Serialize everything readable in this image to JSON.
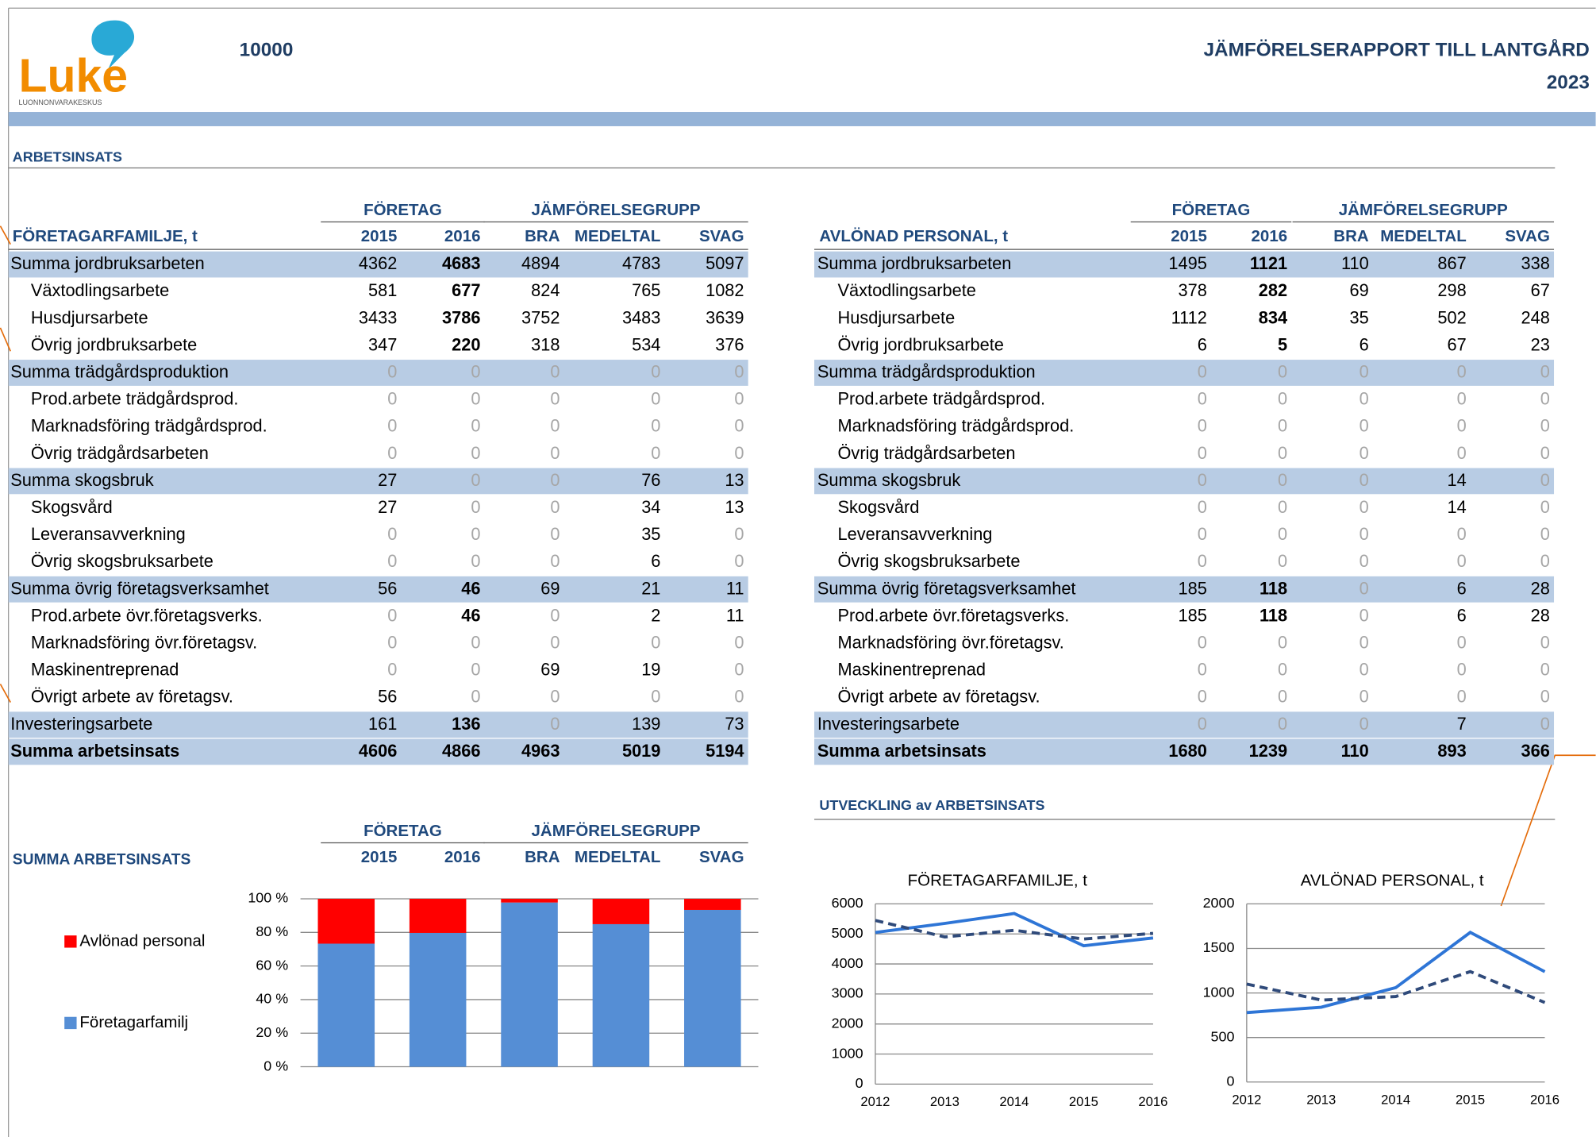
{
  "header": {
    "logo": "Luke",
    "logo_subtitle": "LUONNONVARAKESKUS",
    "farm_id": "10000",
    "title": "JÄMFÖRELSERAPPORT TILL LANTGÅRD",
    "year": "2023"
  },
  "section": "ARBETSINSATS",
  "column_groups": [
    "FÖRETAG",
    "JÄMFÖRELSEGRUPP"
  ],
  "columns": [
    "2015",
    "2016",
    "BRA",
    "MEDELTAL",
    "SVAG"
  ],
  "tables": [
    {
      "title": "FÖRETAGARFAMILJE, t",
      "groups": [
        {
          "label": "Summa jordbruksarbeten",
          "values": [
            4362,
            4683,
            4894,
            4783,
            5097
          ],
          "items": [
            {
              "label": "Växtodlingsarbete",
              "values": [
                581,
                677,
                824,
                765,
                1082
              ]
            },
            {
              "label": "Husdjursarbete",
              "values": [
                3433,
                3786,
                3752,
                3483,
                3639
              ]
            },
            {
              "label": "Övrig jordbruksarbete",
              "values": [
                347,
                220,
                318,
                534,
                376
              ]
            }
          ]
        },
        {
          "label": "Summa trädgårdsproduktion",
          "values": [
            0,
            0,
            0,
            0,
            0
          ],
          "items": [
            {
              "label": "Prod.arbete trädgårdsprod.",
              "values": [
                0,
                0,
                0,
                0,
                0
              ]
            },
            {
              "label": "Marknadsföring trädgårdsprod.",
              "values": [
                0,
                0,
                0,
                0,
                0
              ]
            },
            {
              "label": "Övrig trädgårdsarbeten",
              "values": [
                0,
                0,
                0,
                0,
                0
              ]
            }
          ]
        },
        {
          "label": "Summa skogsbruk",
          "values": [
            27,
            0,
            0,
            76,
            13
          ],
          "items": [
            {
              "label": "Skogsvård",
              "values": [
                27,
                0,
                0,
                34,
                13
              ]
            },
            {
              "label": "Leveransavverkning",
              "values": [
                0,
                0,
                0,
                35,
                0
              ]
            },
            {
              "label": "Övrig skogsbruksarbete",
              "values": [
                0,
                0,
                0,
                6,
                0
              ]
            }
          ]
        },
        {
          "label": "Summa övrig företagsverksamhet",
          "values": [
            56,
            46,
            69,
            21,
            11
          ],
          "items": [
            {
              "label": "Prod.arbete övr.företagsverks.",
              "values": [
                0,
                46,
                0,
                2,
                11
              ]
            },
            {
              "label": "Marknadsföring övr.företagsv.",
              "values": [
                0,
                0,
                0,
                0,
                0
              ]
            },
            {
              "label": "Maskinentreprenad",
              "values": [
                0,
                0,
                69,
                19,
                0
              ]
            },
            {
              "label": "Övrigt arbete av företagsv.",
              "values": [
                56,
                0,
                0,
                0,
                0
              ]
            }
          ]
        },
        {
          "label": "Investeringsarbete",
          "values": [
            161,
            136,
            0,
            139,
            73
          ],
          "items": []
        }
      ],
      "total": {
        "label": "Summa arbetsinsats",
        "values": [
          4606,
          4866,
          4963,
          5019,
          5194
        ]
      }
    },
    {
      "title": "AVLÖNAD PERSONAL, t",
      "groups": [
        {
          "label": "Summa jordbruksarbeten",
          "values": [
            1495,
            1121,
            110,
            867,
            338
          ],
          "items": [
            {
              "label": "Växtodlingsarbete",
              "values": [
                378,
                282,
                69,
                298,
                67
              ]
            },
            {
              "label": "Husdjursarbete",
              "values": [
                1112,
                834,
                35,
                502,
                248
              ]
            },
            {
              "label": "Övrig jordbruksarbete",
              "values": [
                6,
                5,
                6,
                67,
                23
              ]
            }
          ]
        },
        {
          "label": "Summa trädgårdsproduktion",
          "values": [
            0,
            0,
            0,
            0,
            0
          ],
          "items": [
            {
              "label": "Prod.arbete trädgårdsprod.",
              "values": [
                0,
                0,
                0,
                0,
                0
              ]
            },
            {
              "label": "Marknadsföring trädgårdsprod.",
              "values": [
                0,
                0,
                0,
                0,
                0
              ]
            },
            {
              "label": "Övrig trädgårdsarbeten",
              "values": [
                0,
                0,
                0,
                0,
                0
              ]
            }
          ]
        },
        {
          "label": "Summa skogsbruk",
          "values": [
            0,
            0,
            0,
            14,
            0
          ],
          "items": [
            {
              "label": "Skogsvård",
              "values": [
                0,
                0,
                0,
                14,
                0
              ]
            },
            {
              "label": "Leveransavverkning",
              "values": [
                0,
                0,
                0,
                0,
                0
              ]
            },
            {
              "label": "Övrig skogsbruksarbete",
              "values": [
                0,
                0,
                0,
                0,
                0
              ]
            }
          ]
        },
        {
          "label": "Summa övrig företagsverksamhet",
          "values": [
            185,
            118,
            0,
            6,
            28
          ],
          "items": [
            {
              "label": "Prod.arbete övr.företagsverks.",
              "values": [
                185,
                118,
                0,
                6,
                28
              ]
            },
            {
              "label": "Marknadsföring övr.företagsv.",
              "values": [
                0,
                0,
                0,
                0,
                0
              ]
            },
            {
              "label": "Maskinentreprenad",
              "values": [
                0,
                0,
                0,
                0,
                0
              ]
            },
            {
              "label": "Övrigt arbete av företagsv.",
              "values": [
                0,
                0,
                0,
                0,
                0
              ]
            }
          ]
        },
        {
          "label": "Investeringsarbete",
          "values": [
            0,
            0,
            0,
            7,
            0
          ],
          "items": []
        }
      ],
      "total": {
        "label": "Summa arbetsinsats",
        "values": [
          1680,
          1239,
          110,
          893,
          366
        ]
      }
    }
  ],
  "development_title": "UTVECKLING av ARBETSINSATS",
  "chart_data": [
    {
      "type": "bar",
      "stacked": true,
      "title": "SUMMA ARBETSINSATS",
      "categories": [
        null,
        null,
        null,
        null,
        null
      ],
      "series": [
        {
          "name": "Avlönad personal",
          "color": "#ff0000",
          "values": [
            26.7,
            20.3,
            2.2,
            15.1,
            6.6
          ]
        },
        {
          "name": "Företagarfamilj",
          "color": "#558ed5",
          "values": [
            73.3,
            79.7,
            97.8,
            84.9,
            93.4
          ]
        }
      ],
      "ylim": [
        0,
        100
      ],
      "yticks": [
        {
          "value": 0,
          "label": "0 %"
        },
        {
          "value": 20,
          "label": "20 %"
        },
        {
          "value": 40,
          "label": "40 %"
        },
        {
          "value": 60,
          "label": "60 %"
        },
        {
          "value": 80,
          "label": "80 %"
        },
        {
          "value": 100,
          "label": "100 %"
        }
      ],
      "grid": true,
      "legend": "left"
    },
    {
      "type": "line",
      "title": "FÖRETAGARFAMILJE, t",
      "x": [
        2012,
        2013,
        2014,
        2015,
        2016
      ],
      "series": [
        {
          "color": "#2e75d6",
          "linestyle": "solid",
          "values": [
            5050,
            5350,
            5680,
            4606,
            4866
          ]
        },
        {
          "color": "#2f4a7a",
          "linestyle": "dashed",
          "values": [
            5450,
            4900,
            5120,
            4830,
            5019
          ]
        }
      ],
      "xlim": [
        2012,
        2016
      ],
      "ylim": [
        0,
        6000
      ],
      "yticks": [
        0,
        1000,
        2000,
        3000,
        4000,
        5000,
        6000
      ],
      "grid": true
    },
    {
      "type": "line",
      "title": "AVLÖNAD PERSONAL, t",
      "x": [
        2012,
        2013,
        2014,
        2015,
        2016
      ],
      "series": [
        {
          "color": "#2e75d6",
          "linestyle": "solid",
          "values": [
            780,
            840,
            1060,
            1680,
            1239
          ]
        },
        {
          "color": "#2f4a7a",
          "linestyle": "dashed",
          "values": [
            1100,
            920,
            960,
            1240,
            893
          ]
        }
      ],
      "xlim": [
        2012,
        2016
      ],
      "ylim": [
        0,
        2000
      ],
      "yticks": [
        0,
        500,
        1000,
        1500,
        2000
      ],
      "grid": true
    }
  ]
}
